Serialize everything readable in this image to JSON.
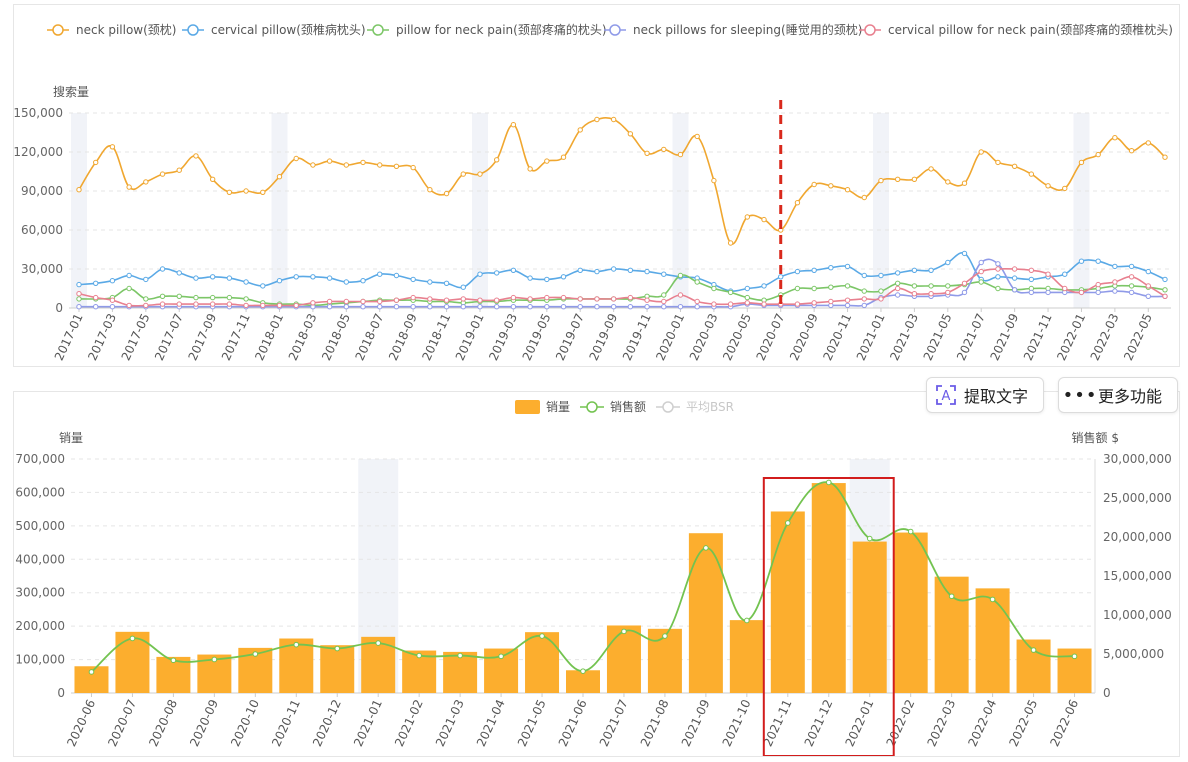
{
  "toolbar": {
    "extract_text": "提取文字",
    "more_features": "更多功能"
  },
  "chart_data": [
    {
      "type": "line",
      "ylabel": "搜索量",
      "ylim": [
        0,
        150000
      ],
      "yticks": [
        0,
        30000,
        60000,
        90000,
        120000,
        150000
      ],
      "ytick_labels": [
        "0",
        "30,000",
        "60,000",
        "90,000",
        "120,000",
        "150,000"
      ],
      "xtick_labels": [
        "2017-01",
        "2017-03",
        "2017-05",
        "2017-07",
        "2017-09",
        "2017-11",
        "2018-01",
        "2018-03",
        "2018-05",
        "2018-07",
        "2018-09",
        "2018-11",
        "2019-01",
        "2019-03",
        "2019-05",
        "2019-07",
        "2019-09",
        "2019-11",
        "2020-01",
        "2020-03",
        "2020-05",
        "2020-07",
        "2020-09",
        "2020-11",
        "2021-01",
        "2021-03",
        "2021-05",
        "2021-07",
        "2021-09",
        "2021-11",
        "2022-01",
        "2022-03",
        "2022-05"
      ],
      "marker_line_at": "2020-07",
      "series": [
        {
          "name": "neck pillow(颈枕)",
          "color": "#f0a730",
          "values": [
            91000,
            112000,
            124000,
            93000,
            97000,
            103000,
            106000,
            117000,
            99000,
            89000,
            90000,
            89000,
            101000,
            115000,
            110000,
            113000,
            110000,
            112000,
            110000,
            109000,
            108000,
            91000,
            88000,
            103000,
            103000,
            114000,
            141000,
            107000,
            113000,
            116000,
            137000,
            145000,
            145000,
            134000,
            119000,
            122000,
            118000,
            132000,
            98000,
            50000,
            70000,
            68000,
            60000,
            81000,
            95000,
            94000,
            91000,
            85000,
            98000,
            99000,
            99000,
            107000,
            97000,
            96000,
            120000,
            112000,
            109000,
            103000,
            94000,
            92000,
            112000,
            118000,
            131000,
            121000,
            127000,
            116000
          ]
        },
        {
          "name": "cervical pillow(颈椎病枕头)",
          "color": "#5aa9e6",
          "values": [
            18000,
            19000,
            21000,
            25000,
            22000,
            30000,
            27000,
            23000,
            24000,
            23000,
            20000,
            17000,
            21000,
            24000,
            24000,
            23000,
            20000,
            21000,
            26000,
            25000,
            22000,
            20000,
            19000,
            16000,
            26000,
            27000,
            29000,
            23000,
            22000,
            24000,
            29000,
            28000,
            30000,
            29000,
            28000,
            26000,
            24000,
            23000,
            18000,
            13000,
            15000,
            17000,
            24000,
            28000,
            29000,
            31000,
            32000,
            25000,
            25000,
            27000,
            29000,
            29000,
            35000,
            42000,
            22000,
            24000,
            23000,
            22000,
            24000,
            26000,
            36000,
            36000,
            32000,
            32000,
            28000,
            22000
          ]
        },
        {
          "name": "pillow for neck pain(颈部疼痛的枕头)",
          "color": "#7cc667",
          "values": [
            7000,
            7000,
            8000,
            15000,
            7000,
            9000,
            9000,
            8000,
            8000,
            8000,
            7000,
            4000,
            3000,
            3000,
            2000,
            3000,
            4000,
            5000,
            6000,
            6000,
            6000,
            5000,
            5000,
            4000,
            5000,
            5000,
            6000,
            6000,
            6000,
            7000,
            7000,
            7000,
            7000,
            7000,
            9000,
            10000,
            25000,
            20000,
            15000,
            12000,
            8000,
            6000,
            10000,
            15000,
            15000,
            16000,
            17000,
            13000,
            13000,
            19000,
            17000,
            17000,
            17000,
            18000,
            20000,
            15000,
            14000,
            15000,
            15000,
            14000,
            14000,
            15000,
            17000,
            17000,
            16000,
            14000
          ]
        },
        {
          "name": "neck pillows for sleeping(睡觉用的颈枕)",
          "color": "#8f9ae8",
          "values": [
            1000,
            1000,
            1000,
            1000,
            1000,
            1000,
            1000,
            1000,
            1000,
            1000,
            1000,
            1000,
            1000,
            1000,
            1000,
            1000,
            1000,
            1000,
            1000,
            1000,
            1000,
            1000,
            1000,
            1000,
            1000,
            1000,
            1000,
            1000,
            1000,
            1000,
            1000,
            1000,
            1000,
            1000,
            1000,
            1000,
            1000,
            1000,
            1000,
            1000,
            3000,
            2000,
            2000,
            2000,
            2000,
            2000,
            2000,
            2000,
            8000,
            10000,
            9000,
            9000,
            10000,
            12000,
            35000,
            34000,
            14000,
            12000,
            12000,
            12000,
            12000,
            12000,
            13000,
            12000,
            9000,
            9000
          ]
        },
        {
          "name": "cervical pillow for neck pain(颈部疼痛的颈椎枕头)",
          "color": "#e8808f",
          "values": [
            11000,
            8000,
            6000,
            2000,
            2000,
            3000,
            3000,
            3000,
            3000,
            3000,
            2000,
            2000,
            2000,
            2000,
            4000,
            5000,
            5000,
            5000,
            5000,
            6000,
            8000,
            7000,
            6000,
            7000,
            6000,
            6000,
            8000,
            7000,
            8000,
            8000,
            7000,
            7000,
            7000,
            8000,
            6000,
            5000,
            10000,
            5000,
            3000,
            3000,
            4000,
            3000,
            3000,
            3000,
            4000,
            5000,
            6000,
            7000,
            7000,
            15000,
            11000,
            11000,
            12000,
            19000,
            28000,
            30000,
            30000,
            29000,
            26000,
            15000,
            12000,
            18000,
            20000,
            24000,
            17000,
            9000
          ]
        }
      ]
    },
    {
      "type": "bar",
      "legend": [
        "销量",
        "销售额",
        "平均BSR"
      ],
      "ylabel_left": "销量",
      "ylabel_right": "销售额 $",
      "ylim_left": [
        0,
        700000
      ],
      "ylim_right": [
        0,
        30000000
      ],
      "yticks_left_labels": [
        "0",
        "100,000",
        "200,000",
        "300,000",
        "400,000",
        "500,000",
        "600,000",
        "700,000"
      ],
      "yticks_right_labels": [
        "0",
        "5,000,000",
        "10,000,000",
        "15,000,000",
        "20,000,000",
        "25,000,000",
        "30,000,000"
      ],
      "categories": [
        "2020-06",
        "2020-07",
        "2020-08",
        "2020-09",
        "2020-10",
        "2020-11",
        "2020-12",
        "2021-01",
        "2021-02",
        "2021-03",
        "2021-04",
        "2021-05",
        "2021-06",
        "2021-07",
        "2021-08",
        "2021-09",
        "2021-10",
        "2021-11",
        "2021-12",
        "2022-01",
        "2022-02",
        "2022-03",
        "2022-04",
        "2022-05",
        "2022-06"
      ],
      "series": [
        {
          "name": "销量",
          "color": "#fcae2e",
          "axis": "left",
          "values": [
            80000,
            183000,
            108000,
            115000,
            135000,
            163000,
            143000,
            168000,
            127000,
            123000,
            133000,
            182000,
            68000,
            202000,
            192000,
            478000,
            218000,
            543000,
            628000,
            453000,
            480000,
            348000,
            313000,
            160000,
            133000
          ]
        },
        {
          "name": "销售额",
          "color": "#73c350",
          "axis": "right",
          "values": [
            2700000,
            7000000,
            4200000,
            4300000,
            5000000,
            6200000,
            5700000,
            6400000,
            4800000,
            4800000,
            4700000,
            7300000,
            2800000,
            7900000,
            7300000,
            18600000,
            9300000,
            21800000,
            27000000,
            19800000,
            20700000,
            12400000,
            12000000,
            5500000,
            4700000
          ]
        }
      ],
      "highlight_range": [
        "2021-11",
        "2022-01"
      ]
    }
  ]
}
